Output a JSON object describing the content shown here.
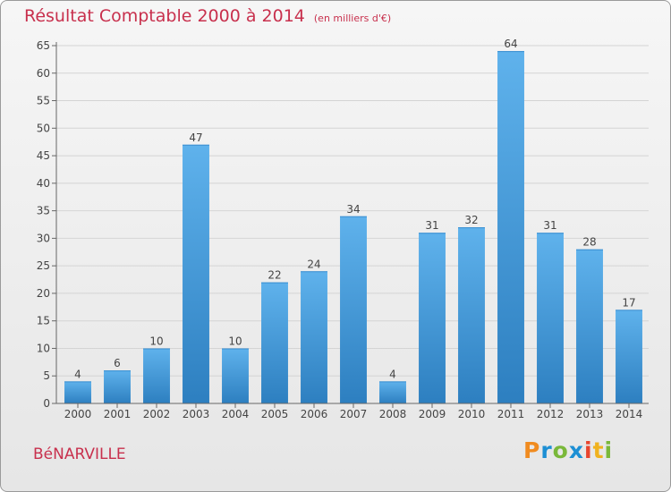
{
  "header": {
    "title": "Résultat Comptable 2000 à 2014",
    "subtitle": "(en milliers d'€)"
  },
  "footer": {
    "place": "BéNARVILLE",
    "logo_letters": [
      "P",
      "r",
      "o",
      "x",
      "i",
      "t",
      "i"
    ]
  },
  "colors": {
    "title": "#c8304d",
    "bar_light": "#5fb2ec",
    "bar_dark": "#2d7fc0",
    "grid": "#d4d4d4"
  },
  "chart_data": {
    "type": "bar",
    "title": "Résultat Comptable 2000 à 2014",
    "subtitle": "(en milliers d'€)",
    "xlabel": "",
    "ylabel": "",
    "categories": [
      "2000",
      "2001",
      "2002",
      "2003",
      "2004",
      "2005",
      "2006",
      "2007",
      "2008",
      "2009",
      "2010",
      "2011",
      "2012",
      "2013",
      "2014"
    ],
    "values": [
      4,
      6,
      10,
      47,
      10,
      22,
      24,
      34,
      4,
      31,
      32,
      64,
      31,
      28,
      17
    ],
    "ylim": [
      0,
      65
    ],
    "yticks": [
      0,
      5,
      10,
      15,
      20,
      25,
      30,
      35,
      40,
      45,
      50,
      55,
      60,
      65
    ],
    "grid": true,
    "data_labels": true
  }
}
